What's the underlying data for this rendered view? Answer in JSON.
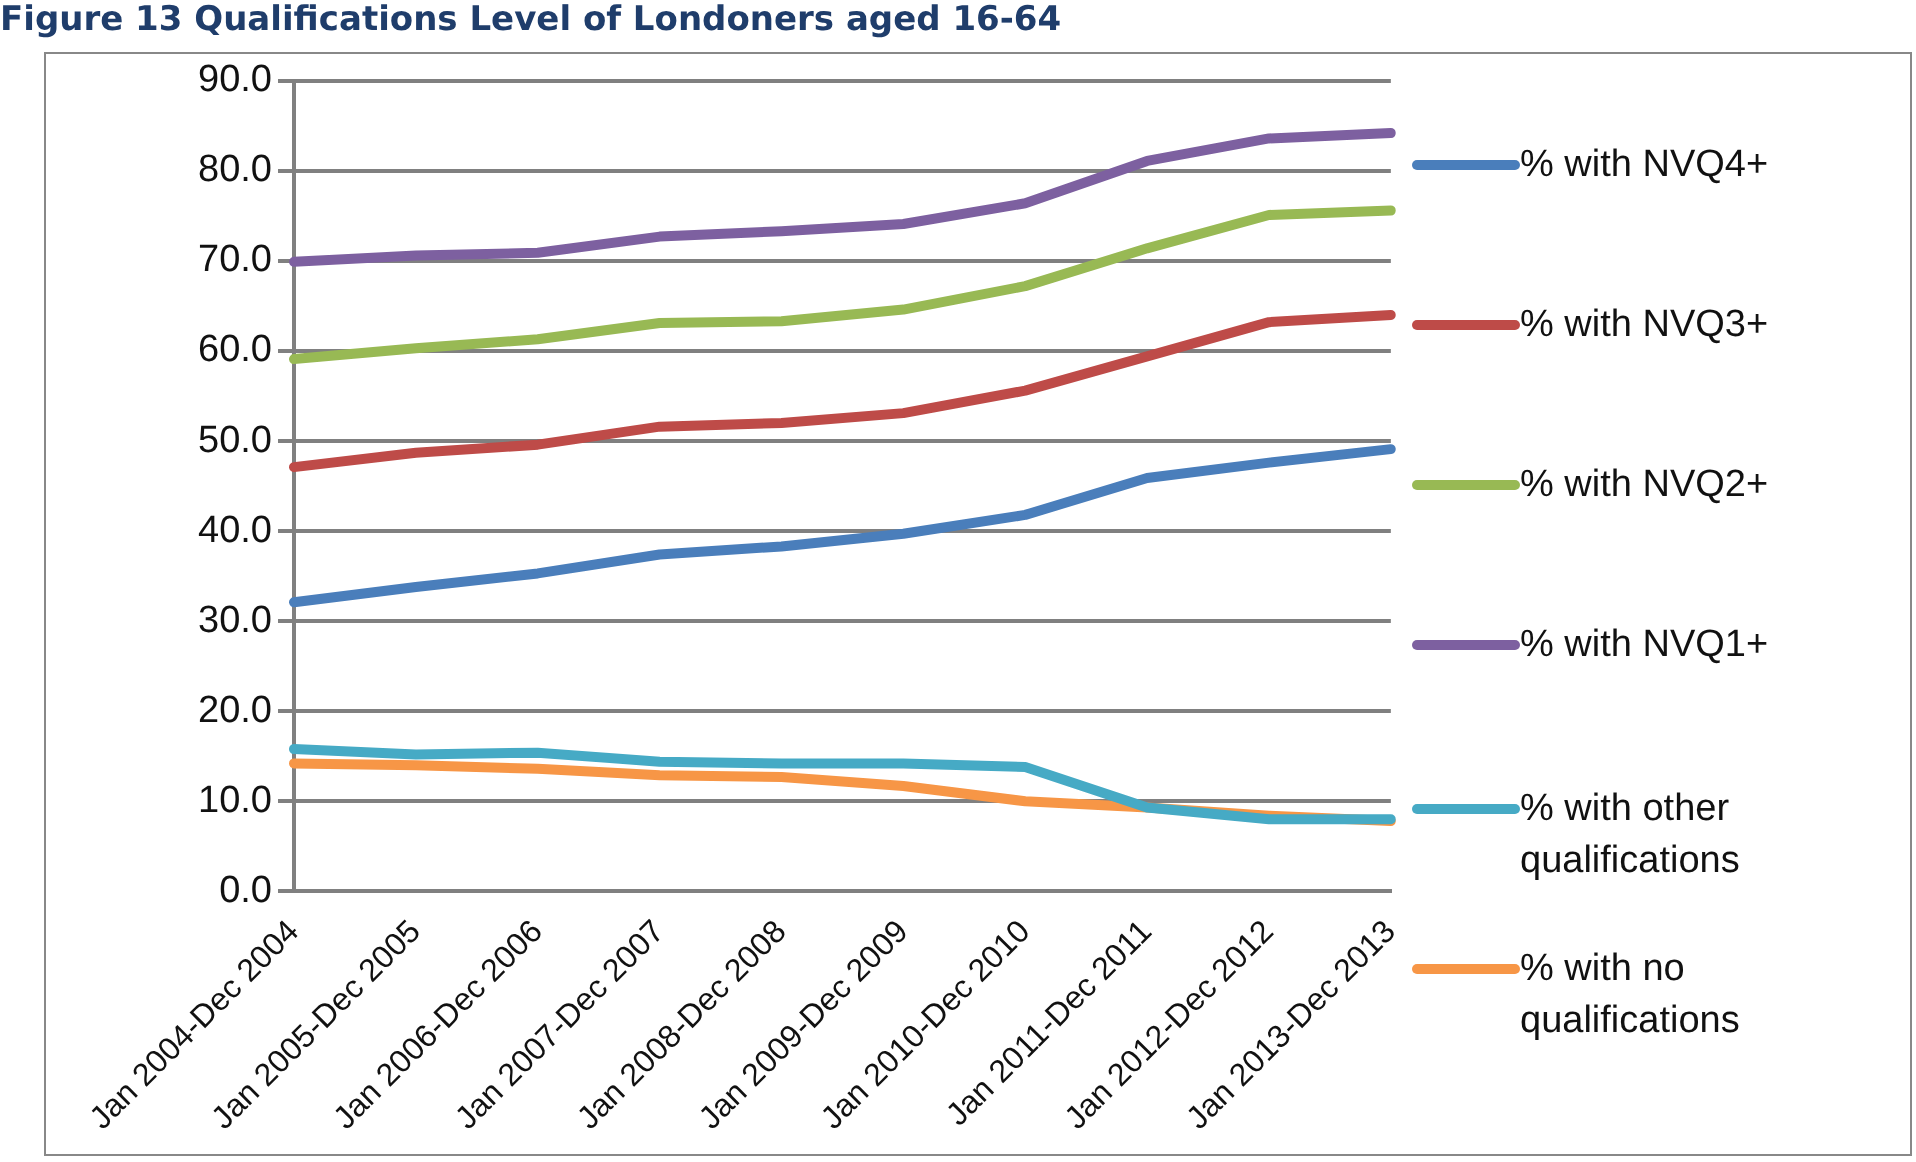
{
  "chart_data": {
    "type": "line",
    "title": "Figure 13 Qualifications Level of Londoners aged 16-64",
    "categories": [
      "Jan 2004-Dec 2004",
      "Jan 2005-Dec 2005",
      "Jan 2006-Dec 2006",
      "Jan 2007-Dec 2007",
      "Jan 2008-Dec 2008",
      "Jan 2009-Dec 2009",
      "Jan 2010-Dec 2010",
      "Jan 2011-Dec 2011",
      "Jan 2012-Dec 2012",
      "Jan 2013-Dec 2013"
    ],
    "series": [
      {
        "name": "% with NVQ4+",
        "color": "#4a7ebb",
        "values": [
          32.1,
          33.8,
          35.3,
          37.4,
          38.3,
          39.7,
          41.8,
          45.9,
          47.6,
          49.1
        ]
      },
      {
        "name": "% with NVQ3+",
        "color": "#be4b48",
        "values": [
          47.1,
          48.7,
          49.6,
          51.6,
          52.0,
          53.1,
          55.6,
          59.4,
          63.2,
          64.0
        ]
      },
      {
        "name": "% with NVQ2+",
        "color": "#98b954",
        "values": [
          59.1,
          60.3,
          61.3,
          63.1,
          63.3,
          64.6,
          67.2,
          71.4,
          75.1,
          75.6
        ]
      },
      {
        "name": "% with NVQ1+",
        "color": "#7d60a0",
        "values": [
          69.9,
          70.6,
          70.9,
          72.7,
          73.3,
          74.1,
          76.4,
          81.1,
          83.6,
          84.2
        ]
      },
      {
        "name": "% with other qualifications",
        "color": "#46aac5",
        "values": [
          15.8,
          15.2,
          15.4,
          14.4,
          14.2,
          14.2,
          13.8,
          9.3,
          8.0,
          8.0
        ]
      },
      {
        "name": "% with no qualifications",
        "color": "#f79646",
        "values": [
          14.2,
          14.0,
          13.6,
          12.9,
          12.7,
          11.7,
          10.0,
          9.3,
          8.4,
          7.8
        ]
      }
    ],
    "ylim": [
      0,
      90
    ],
    "yticks": [
      {
        "value": 0,
        "label": "0.0"
      },
      {
        "value": 10,
        "label": "10.0"
      },
      {
        "value": 20,
        "label": "20.0"
      },
      {
        "value": 30,
        "label": "30.0"
      },
      {
        "value": 40,
        "label": "40.0"
      },
      {
        "value": 50,
        "label": "50.0"
      },
      {
        "value": 60,
        "label": "60.0"
      },
      {
        "value": 70,
        "label": "70.0"
      },
      {
        "value": 80,
        "label": "80.0"
      },
      {
        "value": 90,
        "label": "90.0"
      }
    ],
    "grid": "y",
    "legend": "right",
    "marker": "none",
    "line_style": "solid"
  }
}
